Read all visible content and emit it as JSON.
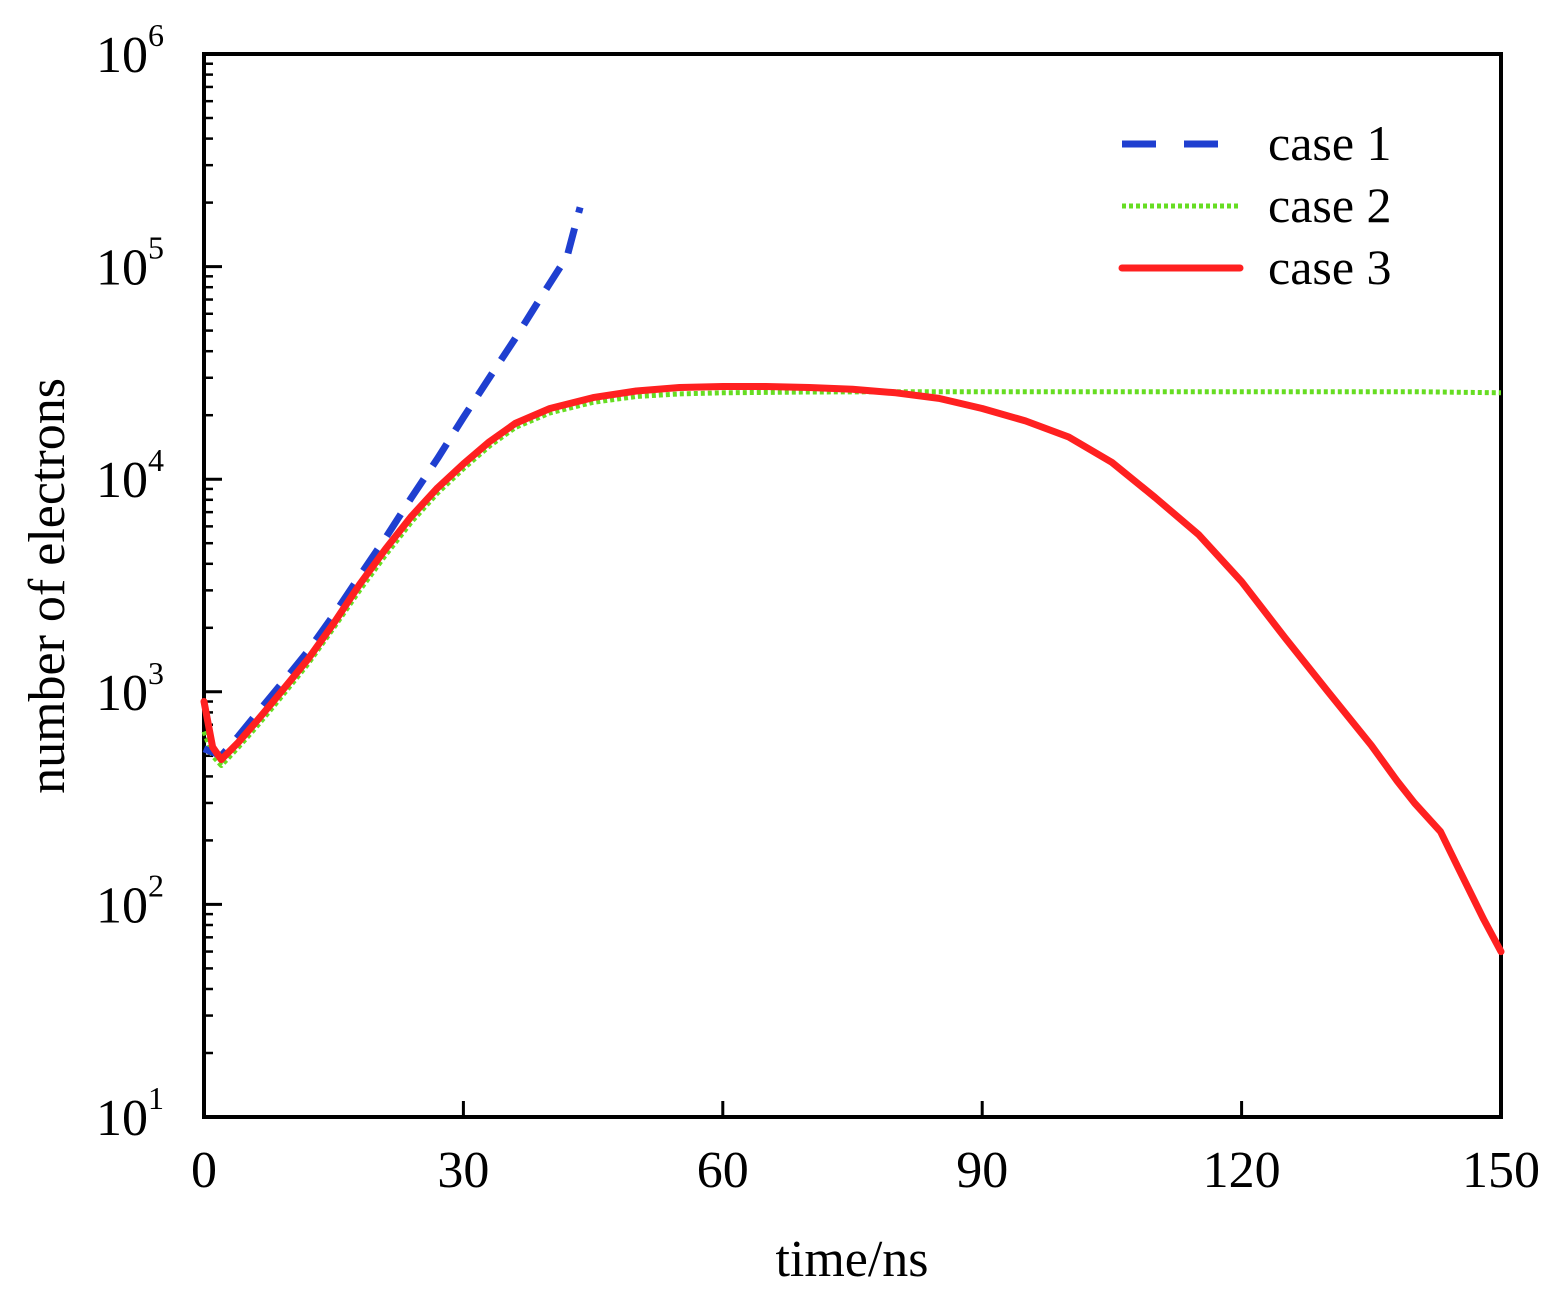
{
  "chart_data": {
    "type": "line",
    "xlabel": "time/ns",
    "ylabel": "number of electrons",
    "xlim": [
      0,
      150
    ],
    "ylim": [
      10,
      1000000
    ],
    "y_scale": "log",
    "grid": false,
    "legend_position": "top-right",
    "x_ticks": [
      "0",
      "30",
      "60",
      "90",
      "120",
      "150"
    ],
    "y_ticks": [
      {
        "base": "10",
        "exp": "1"
      },
      {
        "base": "10",
        "exp": "2"
      },
      {
        "base": "10",
        "exp": "3"
      },
      {
        "base": "10",
        "exp": "4"
      },
      {
        "base": "10",
        "exp": "5"
      },
      {
        "base": "10",
        "exp": "6"
      }
    ],
    "series": [
      {
        "name": "case 1",
        "color": "#1f3fd0",
        "style": "dashed",
        "x": [
          0,
          1,
          2,
          4,
          6,
          8,
          10,
          12,
          15,
          18,
          21,
          24,
          27,
          30,
          33,
          36,
          39,
          42,
          43.5
        ],
        "y": [
          540,
          520,
          500,
          620,
          780,
          980,
          1230,
          1550,
          2300,
          3500,
          5300,
          8200,
          12500,
          19500,
          30000,
          46000,
          72000,
          112000,
          190000
        ]
      },
      {
        "name": "case 2",
        "color": "#66dd22",
        "style": "dotted",
        "x": [
          0,
          1,
          2,
          4,
          6,
          8,
          10,
          12,
          15,
          18,
          21,
          24,
          27,
          30,
          33,
          36,
          40,
          45,
          50,
          55,
          60,
          70,
          80,
          90,
          100,
          110,
          120,
          130,
          140,
          150
        ],
        "y": [
          650,
          500,
          450,
          550,
          680,
          850,
          1070,
          1350,
          2000,
          3000,
          4400,
          6300,
          8600,
          11200,
          14300,
          17500,
          20500,
          23000,
          24500,
          25200,
          25500,
          25700,
          25800,
          25800,
          25800,
          25800,
          25800,
          25800,
          25800,
          25500
        ]
      },
      {
        "name": "case 3",
        "color": "#ff2020",
        "style": "solid",
        "x": [
          0,
          1,
          2,
          4,
          6,
          8,
          10,
          12,
          15,
          18,
          21,
          24,
          27,
          30,
          33,
          36,
          40,
          45,
          50,
          55,
          60,
          65,
          70,
          75,
          80,
          85,
          90,
          95,
          100,
          105,
          110,
          115,
          120,
          125,
          130,
          135,
          138,
          140,
          143,
          145,
          148,
          150
        ],
        "y": [
          900,
          550,
          480,
          580,
          720,
          900,
          1130,
          1420,
          2100,
          3200,
          4700,
          6700,
          9100,
          11800,
          15000,
          18300,
          21500,
          24200,
          26000,
          27000,
          27300,
          27300,
          27000,
          26500,
          25500,
          24000,
          21500,
          18800,
          15800,
          12000,
          8200,
          5500,
          3300,
          1800,
          1000,
          560,
          380,
          300,
          220,
          150,
          85,
          60
        ]
      }
    ]
  }
}
